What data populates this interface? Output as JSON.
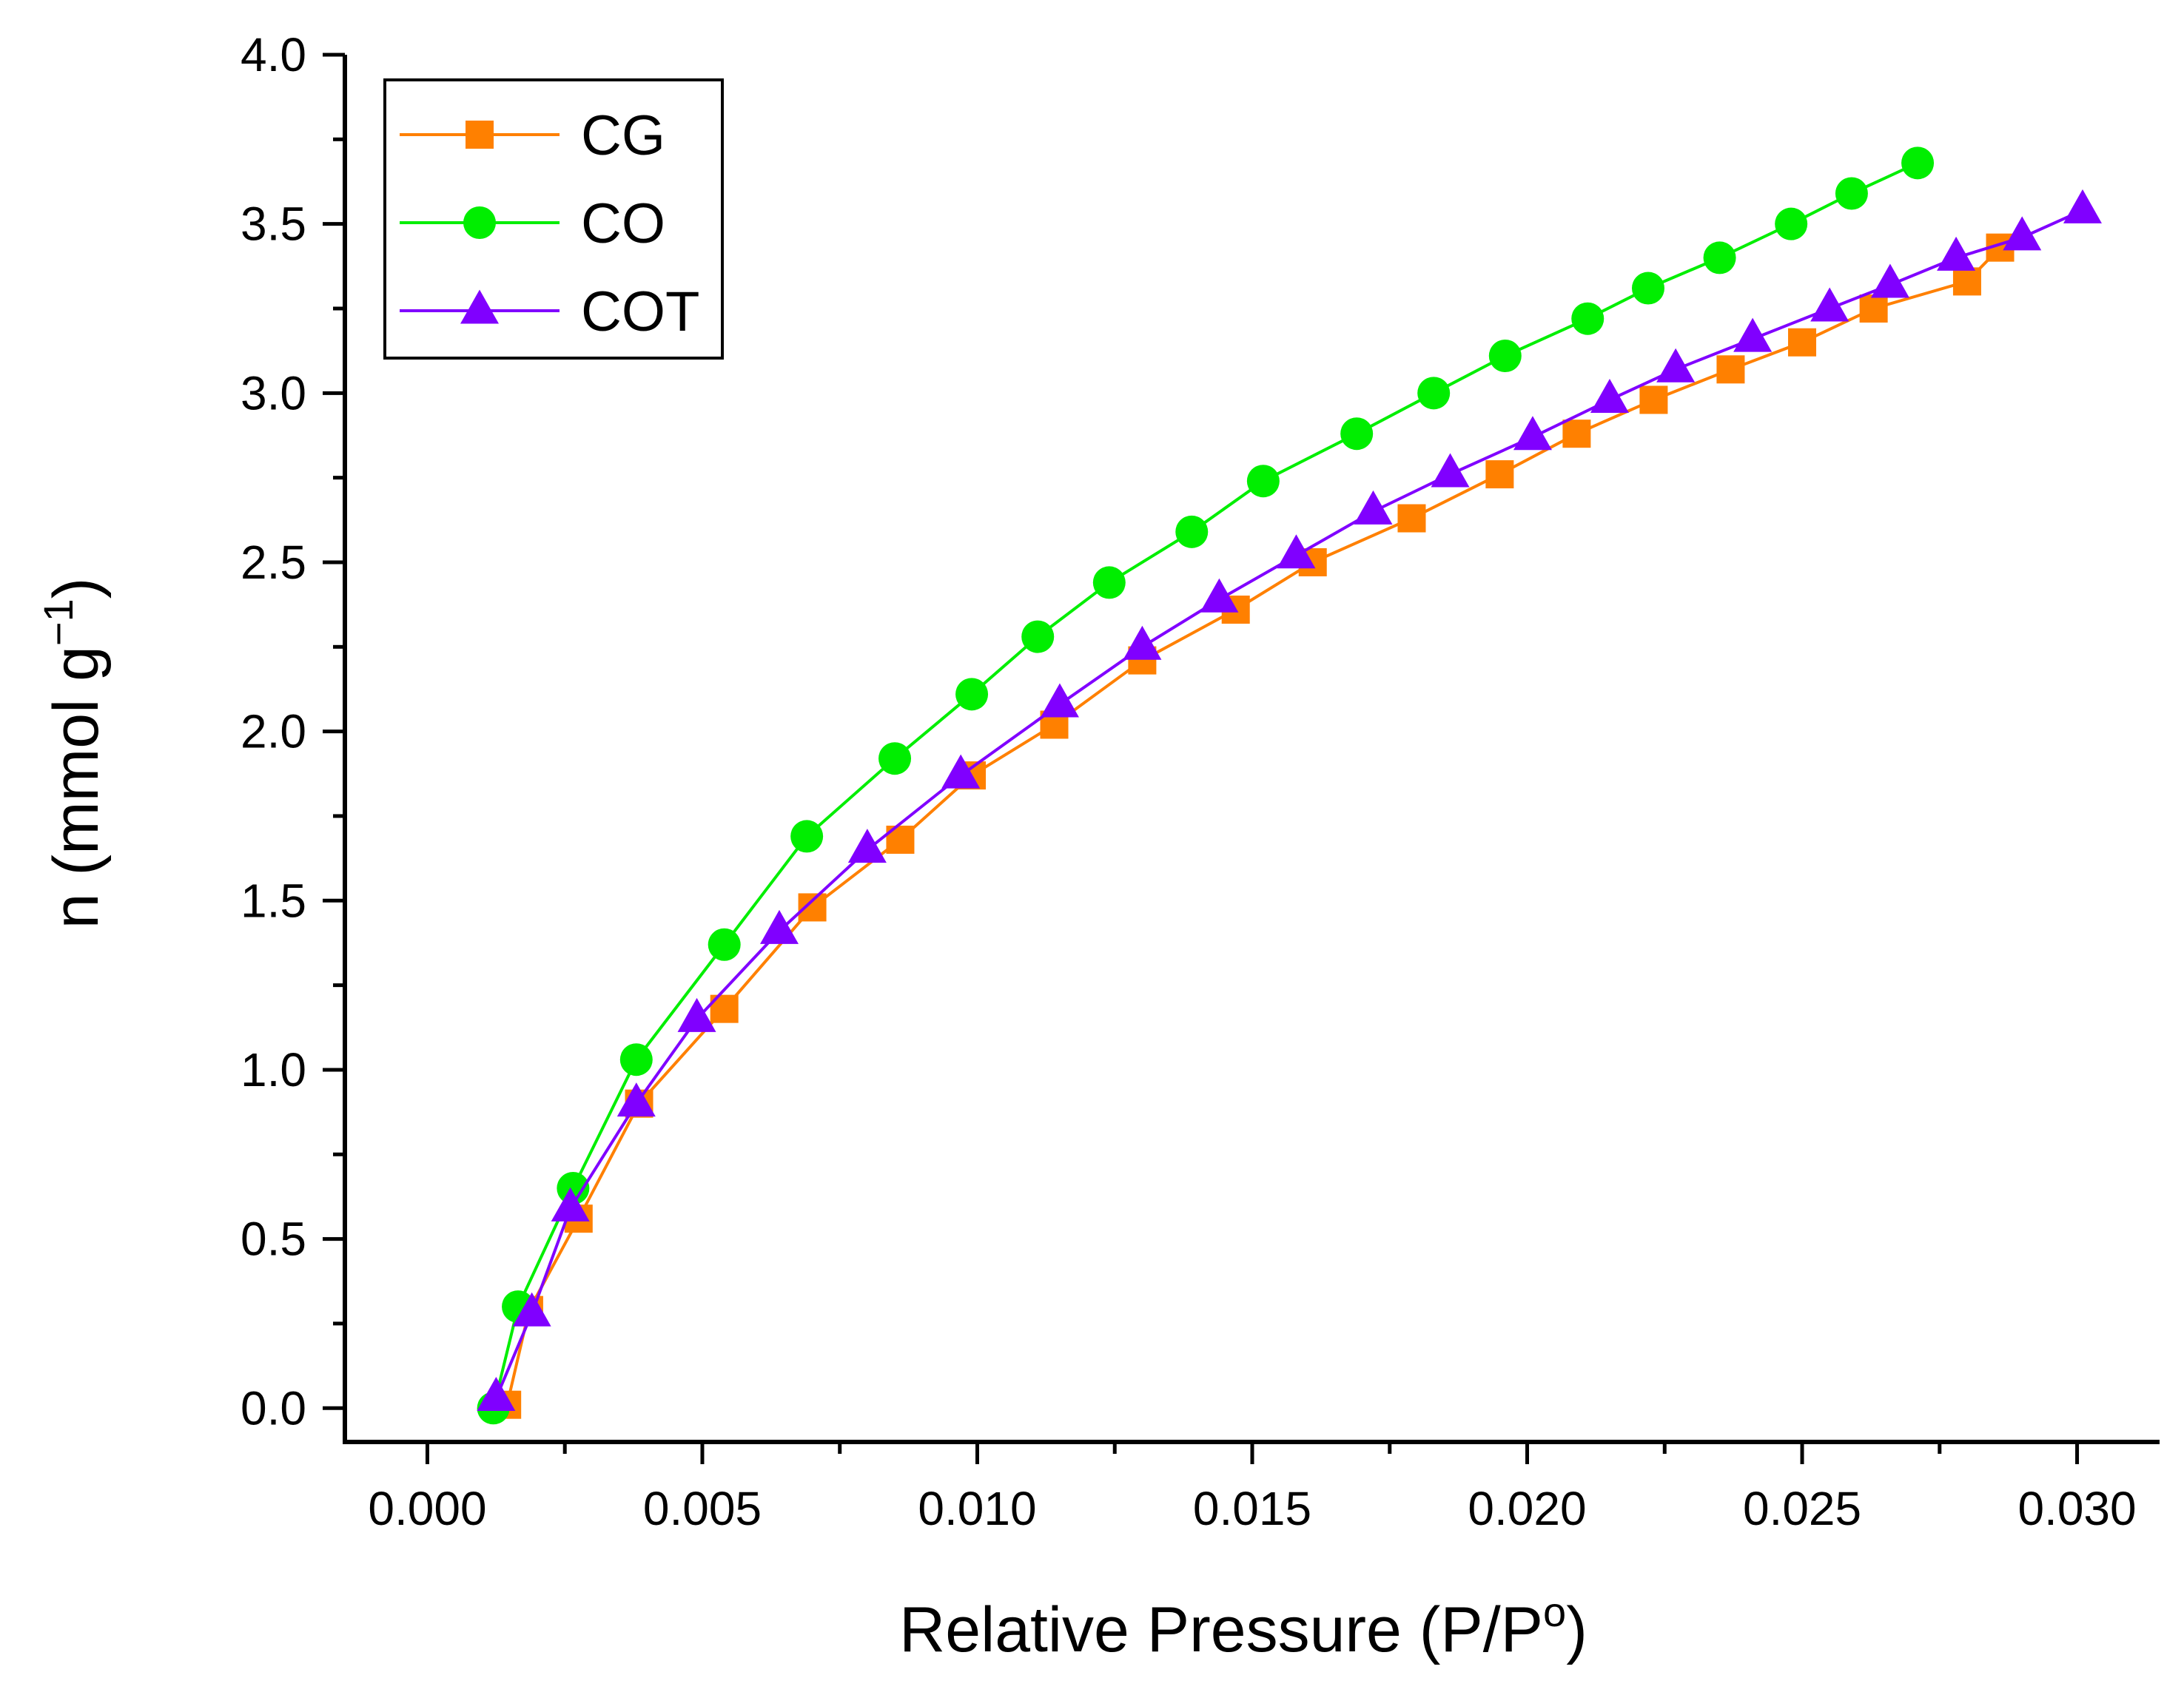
{
  "chart_data": {
    "type": "line",
    "xlabel": "Relative Pressure (P/P",
    "xlabel_sup": "o",
    "xlabel_close": ")",
    "ylabel": "n (mmol g",
    "ylabel_sup": "−1",
    "ylabel_close": ")",
    "xlim": [
      -0.0015,
      0.0315
    ],
    "ylim": [
      -0.1,
      4.0
    ],
    "x_ticks": [
      0.0,
      0.005,
      0.01,
      0.015,
      0.02,
      0.025,
      0.03
    ],
    "x_tick_labels": [
      "0.000",
      "0.005",
      "0.010",
      "0.015",
      "0.020",
      "0.025",
      "0.030"
    ],
    "y_ticks": [
      0.0,
      0.5,
      1.0,
      1.5,
      2.0,
      2.5,
      3.0,
      3.5,
      4.0
    ],
    "y_tick_labels": [
      "0.0",
      "0.5",
      "1.0",
      "1.5",
      "2.0",
      "2.5",
      "3.0",
      "3.5",
      "4.0"
    ],
    "grid": false,
    "legend_position": "top-left",
    "series": [
      {
        "name": "CG",
        "color": "#ff8000",
        "marker": "square",
        "x": [
          0.00145,
          0.00185,
          0.00275,
          0.00385,
          0.0054,
          0.007,
          0.0086,
          0.0099,
          0.0114,
          0.013,
          0.0147,
          0.0161,
          0.0179,
          0.0195,
          0.0209,
          0.0223,
          0.0237,
          0.025,
          0.0263,
          0.028,
          0.0286
        ],
        "y": [
          0.01,
          0.29,
          0.56,
          0.9,
          1.18,
          1.48,
          1.68,
          1.87,
          2.02,
          2.21,
          2.36,
          2.5,
          2.63,
          2.76,
          2.88,
          2.98,
          3.07,
          3.15,
          3.25,
          3.33,
          3.43
        ]
      },
      {
        "name": "CO",
        "color": "#00ee00",
        "marker": "circle",
        "x": [
          0.0012,
          0.00165,
          0.00265,
          0.0038,
          0.0054,
          0.0069,
          0.0085,
          0.0099,
          0.0111,
          0.0124,
          0.0139,
          0.0152,
          0.0169,
          0.0183,
          0.0196,
          0.0211,
          0.0222,
          0.0235,
          0.0248,
          0.0259,
          0.0271
        ],
        "y": [
          0.0,
          0.3,
          0.65,
          1.03,
          1.37,
          1.69,
          1.92,
          2.11,
          2.28,
          2.44,
          2.59,
          2.74,
          2.88,
          3.0,
          3.11,
          3.22,
          3.31,
          3.4,
          3.5,
          3.59,
          3.68
        ]
      },
      {
        "name": "COT",
        "color": "#8000ff",
        "marker": "triangle",
        "x": [
          0.00125,
          0.0019,
          0.0026,
          0.0038,
          0.0049,
          0.0064,
          0.008,
          0.0097,
          0.0115,
          0.013,
          0.0144,
          0.0158,
          0.0172,
          0.0186,
          0.0201,
          0.0215,
          0.0227,
          0.0241,
          0.0255,
          0.0266,
          0.0278,
          0.029,
          0.0301
        ],
        "y": [
          0.03,
          0.28,
          0.59,
          0.9,
          1.15,
          1.41,
          1.65,
          1.87,
          2.08,
          2.25,
          2.39,
          2.52,
          2.65,
          2.76,
          2.87,
          2.98,
          3.07,
          3.16,
          3.25,
          3.32,
          3.4,
          3.46,
          3.54
        ]
      }
    ]
  }
}
